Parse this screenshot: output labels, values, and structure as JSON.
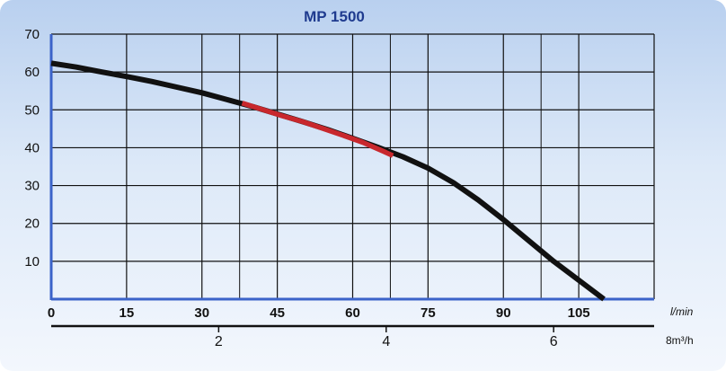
{
  "chart_data": {
    "type": "line",
    "title": "MP 1500",
    "x_unit_label": "l/min",
    "x2_unit_label": "8m³/h",
    "xlim": [
      0,
      120
    ],
    "ylim": [
      0,
      70
    ],
    "x_ticks": [
      "0",
      "15",
      "30",
      "45",
      "60",
      "75",
      "90",
      "105"
    ],
    "y_ticks": [
      "10",
      "20",
      "30",
      "40",
      "50",
      "60",
      "70"
    ],
    "x2_ticks": [
      "2",
      "4",
      "6"
    ],
    "x2_tick_values_lmin": [
      33.33,
      66.67,
      100
    ],
    "grid": true,
    "series": [
      {
        "color": "#111111",
        "x": [
          0,
          5,
          10,
          15,
          20,
          25,
          30,
          35,
          40,
          45,
          50,
          55,
          60,
          65,
          70,
          75,
          80,
          85,
          90,
          95,
          100,
          105,
          110
        ],
        "y": [
          62.3,
          61.3,
          60.0,
          58.8,
          57.5,
          56.0,
          54.5,
          52.7,
          50.9,
          48.9,
          46.9,
          44.8,
          42.5,
          40.1,
          37.6,
          34.6,
          30.8,
          26.2,
          21.0,
          15.5,
          10.0,
          5.0,
          0
        ]
      },
      {
        "color": "#c8282d",
        "x": [
          38,
          42,
          46,
          50,
          54,
          58,
          62,
          66,
          68
        ],
        "y": [
          51.8,
          50.1,
          48.4,
          46.9,
          45.1,
          43.3,
          41.4,
          39.1,
          37.9
        ]
      }
    ]
  }
}
